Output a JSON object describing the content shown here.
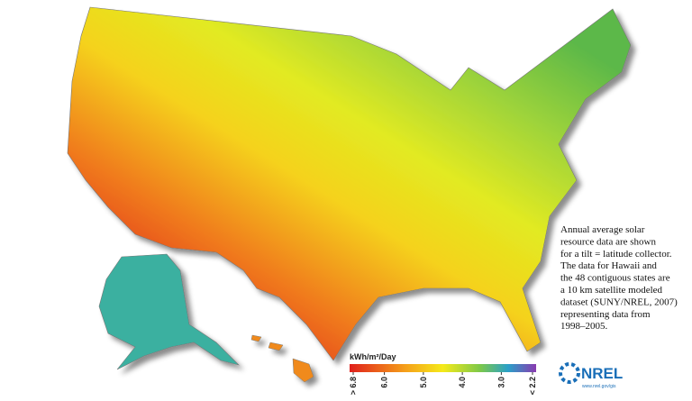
{
  "description": {
    "lines": [
      "Annual average solar",
      "resource data are shown",
      "for a tilt = latitude collector.",
      "The data for Hawaii and",
      "the 48 contiguous states are",
      "a 10 km satellite modeled",
      "dataset (SUNY/NREL, 2007)",
      "representing data from",
      "1998–2005."
    ]
  },
  "legend": {
    "title": "kWh/m²/Day",
    "ticks": [
      {
        "value": 6.8,
        "label": "> 6.8"
      },
      {
        "value": 6.0,
        "label": "6.0"
      },
      {
        "value": 5.0,
        "label": "5.0"
      },
      {
        "value": 4.0,
        "label": "4.0"
      },
      {
        "value": 3.0,
        "label": "3.0"
      },
      {
        "value": 2.2,
        "label": "< 2.2"
      }
    ]
  },
  "logo": {
    "name": "NREL",
    "url": "www.nrel.gov/gis"
  }
}
